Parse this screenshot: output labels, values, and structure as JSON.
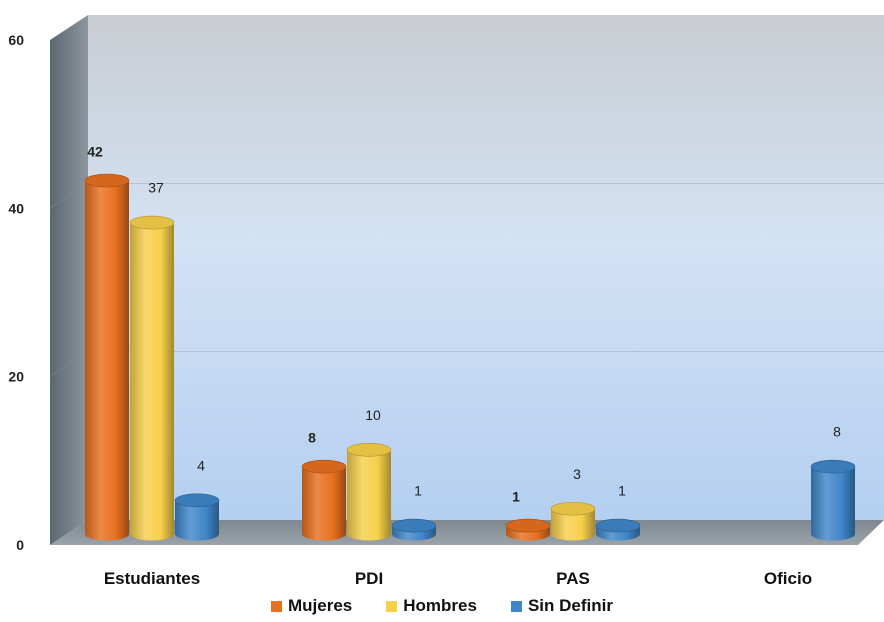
{
  "chart_data": {
    "type": "bar",
    "categories": [
      "Estudiantes",
      "PDI",
      "PAS",
      "Oficio"
    ],
    "series": [
      {
        "name": "Mujeres",
        "values": [
          42,
          8,
          1,
          null
        ],
        "labels": [
          "42",
          "8",
          "1",
          ""
        ],
        "color": "#E8701E"
      },
      {
        "name": "Hombres",
        "values": [
          37,
          10,
          3,
          null
        ],
        "labels": [
          "37",
          "10",
          "3",
          ""
        ],
        "color": "#F7D04A"
      },
      {
        "name": "Sin Definir",
        "values": [
          4,
          1,
          1,
          8
        ],
        "labels": [
          "4",
          "1",
          "1",
          "8"
        ],
        "color": "#3F86C9"
      }
    ],
    "ylim": [
      0,
      60
    ],
    "yticks": [
      "0",
      "20",
      "40",
      "60"
    ],
    "title": "",
    "xlabel": "",
    "ylabel": "",
    "legend_position": "bottom",
    "grid": true
  }
}
